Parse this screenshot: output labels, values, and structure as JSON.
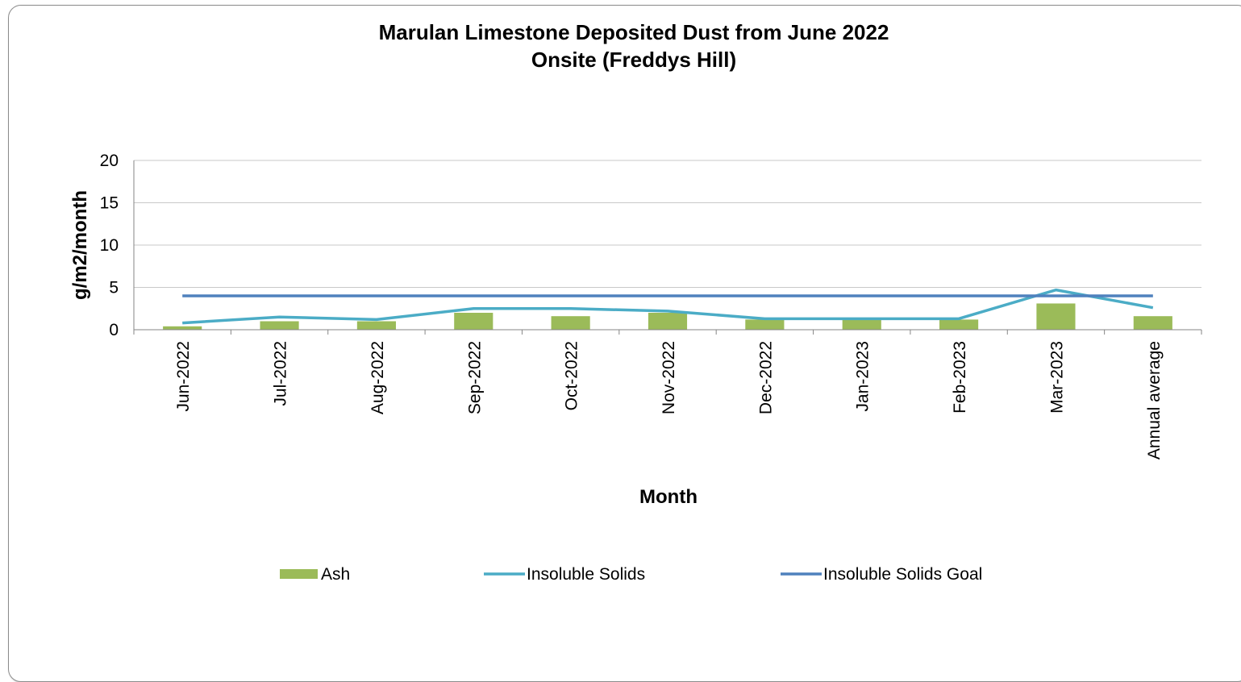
{
  "chart_data": {
    "type": "bar",
    "title": "Marulan Limestone Deposited Dust from June 2022",
    "subtitle": "Onsite (Freddys Hill)",
    "xlabel": "Month",
    "ylabel": "g/m2/month",
    "ylim": [
      0,
      20
    ],
    "yticks": [
      "0",
      "5",
      "10",
      "15",
      "20"
    ],
    "grid": true,
    "legend_position": "bottom",
    "categories": [
      "Jun-2022",
      "Jul-2022",
      "Aug-2022",
      "Sep-2022",
      "Oct-2022",
      "Nov-2022",
      "Dec-2022",
      "Jan-2023",
      "Feb-2023",
      "Mar-2023",
      "Annual average"
    ],
    "series": [
      {
        "name": "Ash",
        "type": "bar",
        "color": "#9bbb59",
        "values": [
          0.4,
          1.0,
          1.0,
          2.0,
          1.6,
          2.0,
          1.2,
          1.2,
          1.2,
          3.1,
          1.6
        ]
      },
      {
        "name": "Insoluble Solids",
        "type": "line",
        "color": "#4bacc6",
        "values": [
          0.8,
          1.5,
          1.2,
          2.5,
          2.5,
          2.2,
          1.3,
          1.3,
          1.3,
          4.7,
          2.6
        ]
      },
      {
        "name": "Insoluble Solids Goal",
        "type": "line",
        "color": "#4f81bd",
        "values": [
          4,
          4,
          4,
          4,
          4,
          4,
          4,
          4,
          4,
          4,
          4
        ]
      }
    ]
  }
}
